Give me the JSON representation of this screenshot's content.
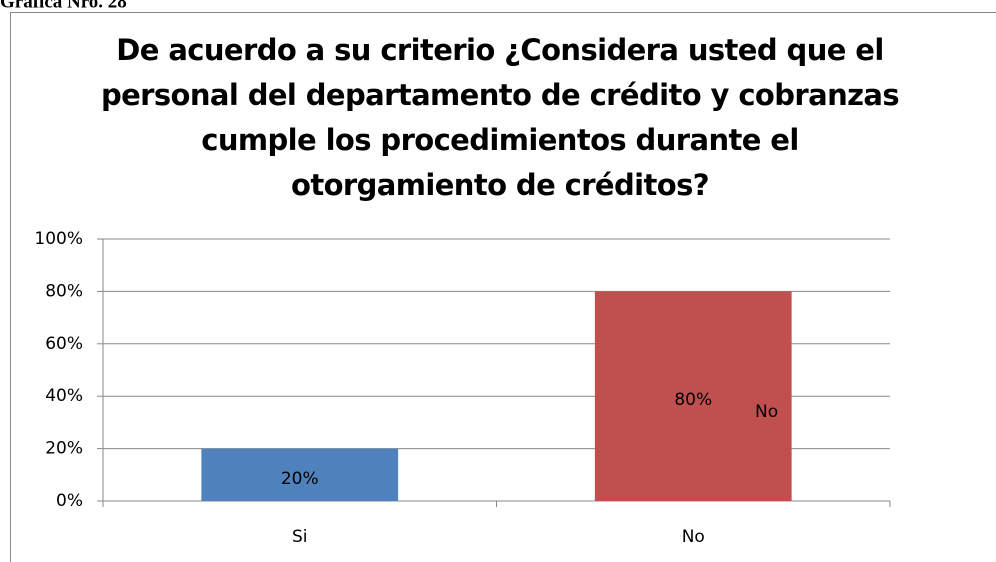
{
  "caption": "Gráfica Nro. 28",
  "chart_data": {
    "type": "bar",
    "title": [
      "De acuerdo a su criterio ¿Considera usted que el",
      "personal del departamento de crédito y cobranzas",
      "cumple los procedimientos durante el",
      "otorgamiento de créditos?"
    ],
    "categories": [
      "Si",
      "No"
    ],
    "values": [
      20,
      80
    ],
    "value_labels": [
      "20%",
      "80%"
    ],
    "colors": [
      "#4f81bd",
      "#c0504d"
    ],
    "ylim": [
      0,
      100
    ],
    "yticks": [
      {
        "value": 0,
        "label": "0%"
      },
      {
        "value": 20,
        "label": "20%"
      },
      {
        "value": 40,
        "label": "40%"
      },
      {
        "value": 60,
        "label": "60%"
      },
      {
        "value": 80,
        "label": "80%"
      },
      {
        "value": 100,
        "label": "100%"
      }
    ],
    "grid": true,
    "legend": "right"
  }
}
